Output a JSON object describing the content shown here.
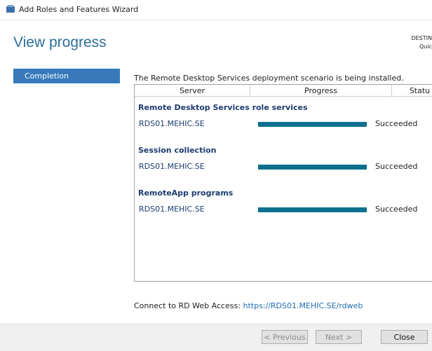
{
  "window": {
    "title": "Add Roles and Features Wizard"
  },
  "header": {
    "title": "View progress",
    "destination": [
      "DESTIN",
      "Quic"
    ]
  },
  "nav": {
    "items": [
      "Completion"
    ]
  },
  "content": {
    "status_text": "The Remote Desktop Services deployment scenario is being installed.",
    "table": {
      "columns": [
        "Server",
        "Progress",
        "Statu"
      ],
      "groups": [
        {
          "title": "Remote Desktop Services role services",
          "rows": [
            {
              "server": "RDS01.MEHIC.SE",
              "progress": 100,
              "status": "Succeeded"
            }
          ]
        },
        {
          "title": "Session collection",
          "rows": [
            {
              "server": "RDS01.MEHIC.SE",
              "progress": 100,
              "status": "Succeeded"
            }
          ]
        },
        {
          "title": "RemoteApp programs",
          "rows": [
            {
              "server": "RDS01.MEHIC.SE",
              "progress": 100,
              "status": "Succeeded"
            }
          ]
        }
      ]
    },
    "web_access": {
      "label": "Connect to RD Web Access:",
      "link": "https://RDS01.MEHIC.SE/rdweb"
    }
  },
  "footer": {
    "buttons": [
      "< Previous",
      "Next >",
      "Close"
    ]
  }
}
